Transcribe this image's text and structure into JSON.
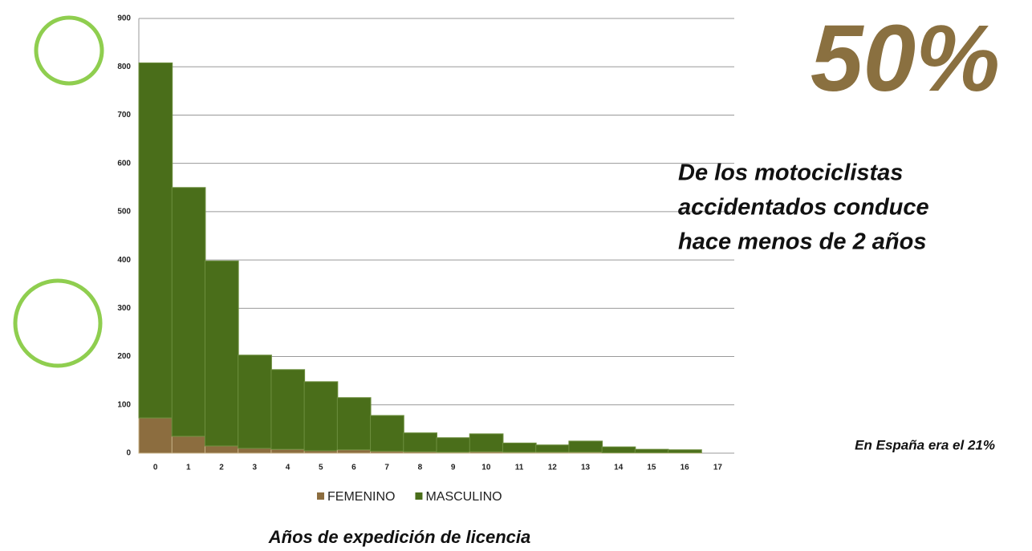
{
  "chart_data": {
    "type": "bar",
    "stacked": true,
    "categories": [
      "0",
      "1",
      "2",
      "3",
      "4",
      "5",
      "6",
      "7",
      "8",
      "9",
      "10",
      "11",
      "12",
      "13",
      "14",
      "15",
      "16",
      "17"
    ],
    "series": [
      {
        "name": "FEMENINO",
        "color": "#8c6d3f",
        "values": [
          73,
          35,
          15,
          10,
          8,
          5,
          7,
          4,
          3,
          2,
          3,
          2,
          2,
          2,
          1,
          1,
          1,
          0
        ]
      },
      {
        "name": "MASCULINO",
        "color": "#4a6e1a",
        "values": [
          735,
          515,
          383,
          193,
          165,
          143,
          108,
          74,
          39,
          30,
          37,
          19,
          15,
          23,
          12,
          7,
          6,
          0
        ]
      }
    ],
    "ylim": [
      0,
      900
    ],
    "yticks": [
      0,
      100,
      200,
      300,
      400,
      500,
      600,
      700,
      800,
      900
    ],
    "grid": true,
    "legend": "bottom",
    "xlabel": "Años de expedición de  licencia",
    "annotations": {
      "headline": "50%",
      "text_lines": [
        "De los motociclistas",
        "accidentados conduce",
        "hace menos de 2 años"
      ],
      "note": "En España era el 21%"
    }
  }
}
